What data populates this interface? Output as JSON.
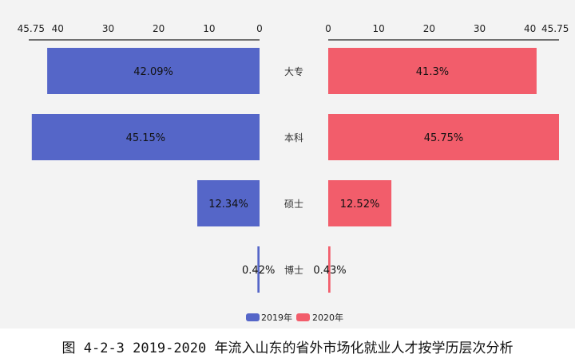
{
  "chart_data": {
    "type": "bar",
    "orientation": "horizontal-butterfly",
    "categories": [
      "大专",
      "本科",
      "硕士",
      "博士"
    ],
    "series": [
      {
        "name": "2019年",
        "values": [
          42.09,
          45.15,
          12.34,
          0.42
        ],
        "labels": [
          "42.09%",
          "45.15%",
          "12.34%",
          "0.42%"
        ],
        "color": "#5566c8",
        "side": "left"
      },
      {
        "name": "2020年",
        "values": [
          41.3,
          45.75,
          12.52,
          0.43
        ],
        "labels": [
          "41.3%",
          "45.75%",
          "12.52%",
          "0.43%"
        ],
        "color": "#f25d6b",
        "side": "right"
      }
    ],
    "xlim": [
      0,
      45.75
    ],
    "left_ticks": [
      "45.75",
      "40",
      "30",
      "20",
      "10",
      "0"
    ],
    "right_ticks": [
      "0",
      "10",
      "20",
      "30",
      "40",
      "45.75"
    ],
    "tick_values": [
      45.75,
      40,
      30,
      20,
      10,
      0
    ],
    "legend_position": "bottom",
    "grid": false
  },
  "caption": "图 4-2-3 2019-2020 年流入山东的省外市场化就业人才按学历层次分析"
}
